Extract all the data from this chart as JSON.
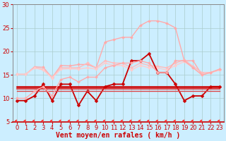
{
  "title": "",
  "xlabel": "Vent moyen/en rafales ( km/h )",
  "ylabel": "",
  "bg_color": "#cceeff",
  "grid_color": "#aacccc",
  "xlim": [
    -0.5,
    23.5
  ],
  "ylim": [
    5,
    30
  ],
  "yticks": [
    5,
    10,
    15,
    20,
    25,
    30
  ],
  "xticks": [
    0,
    1,
    2,
    3,
    4,
    5,
    6,
    7,
    8,
    9,
    10,
    11,
    12,
    13,
    14,
    15,
    16,
    17,
    18,
    19,
    20,
    21,
    22,
    23
  ],
  "lines": [
    {
      "y": [
        15.1,
        15.1,
        16.7,
        16.6,
        14.4,
        17.0,
        16.9,
        17.2,
        17.2,
        16.5,
        22.0,
        22.5,
        23.0,
        23.0,
        25.5,
        26.5,
        26.5,
        26.0,
        25.0,
        18.0,
        18.0,
        15.0,
        15.5,
        16.0
      ],
      "color": "#ffaaaa",
      "lw": 1.0,
      "marker": "D",
      "ms": 2.0
    },
    {
      "y": [
        15.1,
        15.1,
        16.5,
        16.2,
        14.5,
        16.5,
        16.5,
        16.5,
        17.5,
        16.5,
        18.0,
        17.5,
        17.5,
        16.5,
        17.5,
        17.0,
        16.8,
        16.5,
        17.5,
        18.2,
        16.8,
        15.5,
        15.5,
        16.2
      ],
      "color": "#ffbbbb",
      "lw": 1.0,
      "marker": "D",
      "ms": 2.0
    },
    {
      "y": [
        15.1,
        15.1,
        16.5,
        16.0,
        14.3,
        16.2,
        16.3,
        16.2,
        16.5,
        16.2,
        17.5,
        17.0,
        17.0,
        16.0,
        17.0,
        16.5,
        16.5,
        16.0,
        17.0,
        17.8,
        16.5,
        15.0,
        15.5,
        16.0
      ],
      "color": "#ffcccc",
      "lw": 1.0,
      "marker": "D",
      "ms": 2.0
    },
    {
      "y": [
        9.5,
        9.5,
        10.5,
        13.0,
        9.5,
        13.0,
        13.0,
        8.5,
        11.5,
        9.5,
        12.5,
        13.0,
        13.0,
        18.0,
        18.0,
        19.5,
        15.5,
        15.5,
        13.0,
        9.5,
        10.5,
        10.5,
        12.5,
        12.5
      ],
      "color": "#cc0000",
      "lw": 1.3,
      "marker": "D",
      "ms": 2.5
    },
    {
      "y": [
        12.5,
        12.5,
        12.5,
        12.5,
        12.5,
        12.5,
        12.5,
        12.5,
        12.5,
        12.5,
        12.5,
        12.5,
        12.5,
        12.5,
        12.5,
        12.5,
        12.5,
        12.5,
        12.5,
        12.5,
        12.5,
        12.5,
        12.5,
        12.5
      ],
      "color": "#cc0000",
      "lw": 1.8,
      "marker": null,
      "ms": 0
    },
    {
      "y": [
        12.0,
        12.0,
        12.0,
        12.0,
        12.0,
        12.0,
        12.0,
        12.0,
        12.0,
        12.0,
        12.0,
        12.0,
        12.0,
        12.0,
        12.0,
        12.0,
        12.0,
        12.0,
        12.0,
        12.0,
        12.0,
        12.0,
        12.0,
        12.0
      ],
      "color": "#dd2222",
      "lw": 1.2,
      "marker": null,
      "ms": 0
    },
    {
      "y": [
        11.5,
        11.5,
        11.5,
        11.5,
        11.5,
        11.5,
        11.5,
        11.5,
        11.5,
        11.5,
        11.5,
        11.5,
        11.5,
        11.5,
        11.5,
        11.5,
        11.5,
        11.5,
        11.5,
        11.5,
        11.5,
        11.5,
        11.5,
        11.5
      ],
      "color": "#dd4444",
      "lw": 1.0,
      "marker": null,
      "ms": 0
    },
    {
      "y": [
        10.0,
        10.0,
        11.5,
        12.5,
        10.5,
        14.0,
        14.5,
        13.5,
        14.5,
        14.5,
        16.5,
        17.0,
        17.5,
        17.5,
        18.0,
        17.5,
        15.5,
        15.5,
        18.0,
        18.0,
        16.5,
        15.0,
        15.5,
        16.2
      ],
      "color": "#ffaaaa",
      "lw": 1.0,
      "marker": "D",
      "ms": 2.0
    }
  ],
  "arrow_color": "#ff3333",
  "axis_bottom_color": "#cc0000",
  "xlabel_color": "#cc0000",
  "xlabel_fontsize": 7,
  "tick_fontsize": 6,
  "tick_color": "#cc0000"
}
